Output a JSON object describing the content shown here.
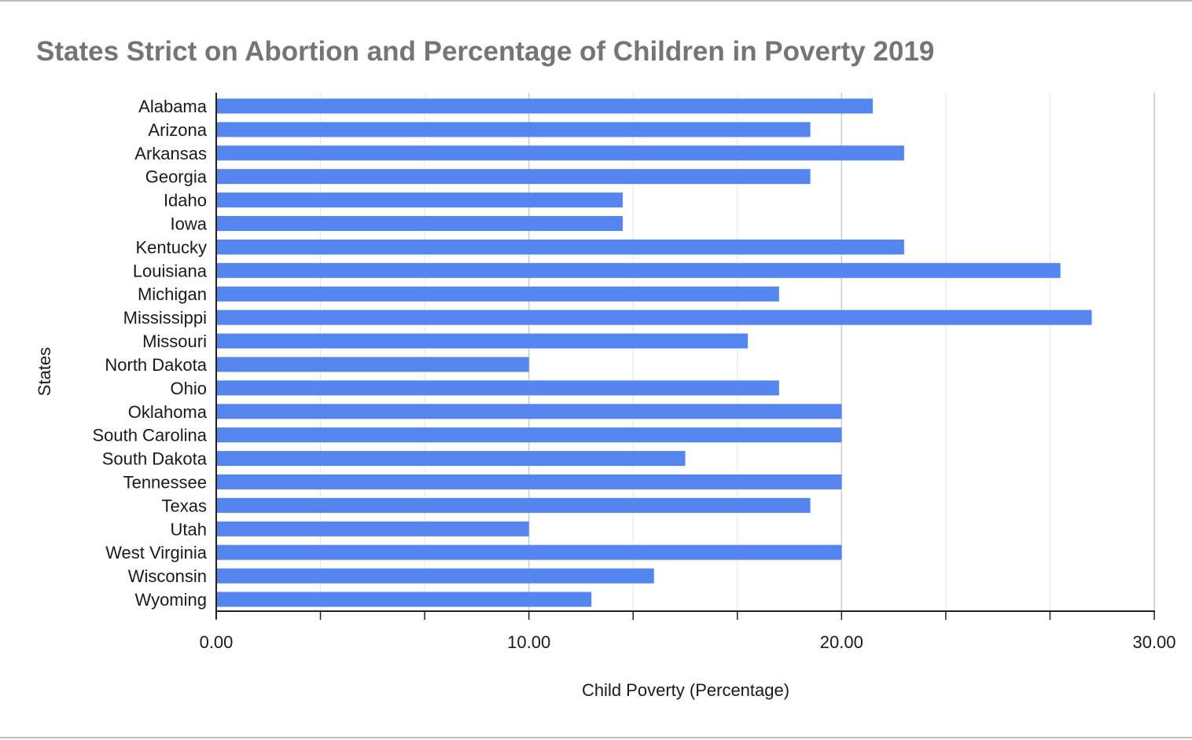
{
  "chart_data": {
    "type": "bar",
    "orientation": "horizontal",
    "title": "States Strict on Abortion and Percentage of Children in Poverty 2019",
    "xlabel": "Child Poverty (Percentage)",
    "ylabel": "States",
    "xlim": [
      0,
      30
    ],
    "x_ticks": [
      "0.00",
      "10.00",
      "20.00",
      "30.00"
    ],
    "grid": true,
    "legend": "none",
    "bar_color": "#5585ee",
    "categories": [
      "Alabama",
      "Arizona",
      "Arkansas",
      "Georgia",
      "Idaho",
      "Iowa",
      "Kentucky",
      "Louisiana",
      "Michigan",
      "Mississippi",
      "Missouri",
      "North Dakota",
      "Ohio",
      "Oklahoma",
      "South Carolina",
      "South Dakota",
      "Tennessee",
      "Texas",
      "Utah",
      "West Virginia",
      "Wisconsin",
      "Wyoming"
    ],
    "values": [
      21,
      19,
      22,
      19,
      13,
      13,
      22,
      27,
      18,
      28,
      17,
      10,
      18,
      20,
      20,
      15,
      20,
      19,
      10,
      20,
      14,
      12
    ]
  }
}
